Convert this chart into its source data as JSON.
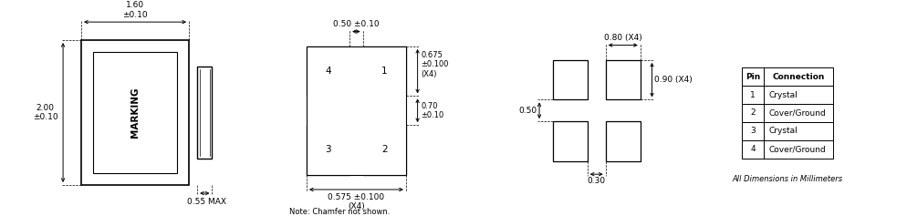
{
  "bg_color": "#ffffff",
  "line_color": "#000000",
  "font_size_small": 6.5,
  "font_size_note": 6.0,
  "table_data": [
    [
      "Pin",
      "Connection"
    ],
    [
      "1",
      "Crystal"
    ],
    [
      "2",
      "Cover/Ground"
    ],
    [
      "3",
      "Crystal"
    ],
    [
      "4",
      "Cover/Ground"
    ]
  ],
  "dim_labels": {
    "width_top": "1.60\n±0.10",
    "height_left": "2.00\n±0.10",
    "thickness": "0.55 MAX",
    "pad_width": "0.50 ±0.10",
    "pad_height": "0.575 ±0.100\n(X4)",
    "pad_size": "0.675\n±0.100\n(X4)",
    "center_pad": "0.70\n±0.10",
    "land_width": "0.80 (X4)",
    "land_height": "0.90 (X4)",
    "land_gap_v": "0.50",
    "land_gap_h": "0.30",
    "marking": "MARKING",
    "note": "Note: Chamfer not shown.",
    "all_dim": "All Dimensions in Millimeters"
  }
}
